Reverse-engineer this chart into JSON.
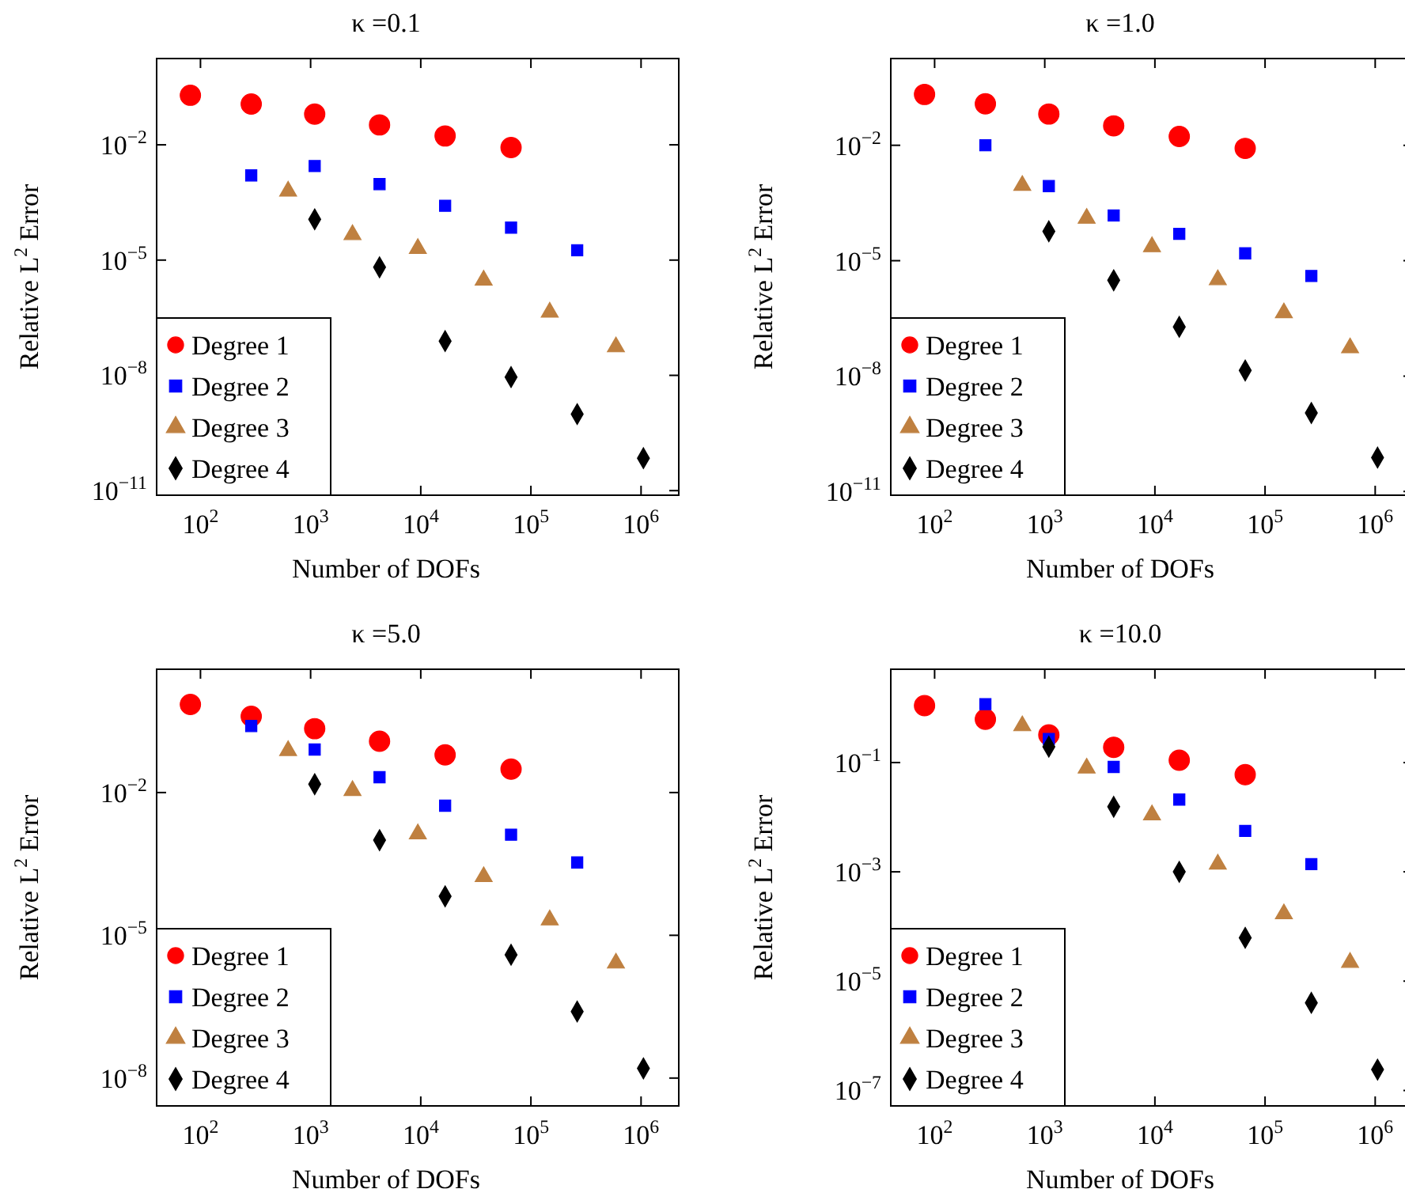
{
  "chart_data": [
    {
      "type": "scatter",
      "title": "κ =0.1",
      "xlabel": "Number of DOFs",
      "ylabel": "Relative L$^{2}$ Error",
      "log": "xy",
      "legend": "bottom left",
      "grid": false,
      "xlim": [
        40,
        2200000
      ],
      "ylim": [
        7.6e-12,
        1.76
      ],
      "xticks": [
        {
          "value": 100,
          "label": "10$^{2}$"
        },
        {
          "value": 1000,
          "label": "10$^{3}$"
        },
        {
          "value": 10000,
          "label": "10$^{4}$"
        },
        {
          "value": 100000,
          "label": "10$^{5}$"
        },
        {
          "value": 1000000,
          "label": "10$^{6}$"
        }
      ],
      "yticks": [
        {
          "value": 1e-11,
          "label": "10$^{−11}$"
        },
        {
          "value": 1e-08,
          "label": "10$^{−8}$"
        },
        {
          "value": 1e-05,
          "label": "10$^{−5}$"
        },
        {
          "value": 0.01,
          "label": "10$^{−2}$"
        }
      ],
      "series": [
        {
          "name": "Degree 1",
          "color": "#ff0000",
          "marker": "circle",
          "x": [
            81,
            289,
            1089,
            4225,
            16641,
            66049
          ],
          "values": [
            0.195,
            0.115,
            0.063,
            0.033,
            0.017,
            0.0085
          ]
        },
        {
          "name": "Degree 2",
          "color": "#0000ff",
          "marker": "square",
          "x": [
            289,
            1089,
            4225,
            16641,
            66049,
            263169
          ],
          "values": [
            0.0016,
            0.0028,
            0.00095,
            0.00026,
            7e-05,
            1.8e-05
          ]
        },
        {
          "name": "Degree 3",
          "color": "#bf8040",
          "marker": "triangle",
          "x": [
            625,
            2401,
            9409,
            37249,
            148225,
            591361
          ],
          "values": [
            0.00062,
            4.6e-05,
            2e-05,
            3e-06,
            4.4e-07,
            5.5e-08
          ]
        },
        {
          "name": "Degree 4",
          "color": "#000000",
          "marker": "diamond",
          "x": [
            1089,
            4225,
            16641,
            66049,
            263169,
            1050625
          ],
          "values": [
            0.000115,
            6.5e-06,
            7.8e-08,
            9e-09,
            9.8e-10,
            7e-11
          ]
        }
      ]
    },
    {
      "type": "scatter",
      "title": "κ =1.0",
      "xlabel": "Number of DOFs",
      "ylabel": "Relative L$^{2}$ Error",
      "log": "xy",
      "legend": "bottom left",
      "grid": false,
      "xlim": [
        40,
        2200000
      ],
      "ylim": [
        8e-12,
        1.8
      ],
      "xticks": [
        {
          "value": 100,
          "label": "10$^{2}$"
        },
        {
          "value": 1000,
          "label": "10$^{3}$"
        },
        {
          "value": 10000,
          "label": "10$^{4}$"
        },
        {
          "value": 100000,
          "label": "10$^{5}$"
        },
        {
          "value": 1000000,
          "label": "10$^{6}$"
        }
      ],
      "yticks": [
        {
          "value": 1e-11,
          "label": "10$^{−11}$"
        },
        {
          "value": 1e-08,
          "label": "10$^{−8}$"
        },
        {
          "value": 1e-05,
          "label": "10$^{−5}$"
        },
        {
          "value": 0.01,
          "label": "10$^{−2}$"
        }
      ],
      "series": [
        {
          "name": "Degree 1",
          "color": "#ff0000",
          "marker": "circle",
          "x": [
            81,
            289,
            1089,
            4225,
            16641,
            66049
          ],
          "values": [
            0.21,
            0.12,
            0.065,
            0.032,
            0.017,
            0.0083
          ]
        },
        {
          "name": "Degree 2",
          "color": "#0000ff",
          "marker": "square",
          "x": [
            289,
            1089,
            4225,
            16641,
            66049,
            263169
          ],
          "values": [
            0.01,
            0.00087,
            0.00015,
            5e-05,
            1.55e-05,
            4e-06
          ]
        },
        {
          "name": "Degree 3",
          "color": "#bf8040",
          "marker": "triangle",
          "x": [
            625,
            2401,
            9409,
            37249,
            148225,
            591361
          ],
          "values": [
            0.0009,
            0.000126,
            2.3e-05,
            3.2e-06,
            4.4e-07,
            5.4e-08
          ]
        },
        {
          "name": "Degree 4",
          "color": "#000000",
          "marker": "diamond",
          "x": [
            1089,
            4225,
            16641,
            66049,
            263169,
            1050625
          ],
          "values": [
            5.8e-05,
            3.1e-06,
            1.9e-07,
            1.4e-08,
            1.1e-09,
            7.6e-11
          ]
        }
      ]
    },
    {
      "type": "scatter",
      "title": "κ =5.0",
      "xlabel": "Number of DOFs",
      "ylabel": "Relative L$^{2}$ Error",
      "log": "xy",
      "legend": "bottom left",
      "grid": false,
      "xlim": [
        40,
        2200000
      ],
      "ylim": [
        2.6e-09,
        3.9
      ],
      "xticks": [
        {
          "value": 100,
          "label": "10$^{2}$"
        },
        {
          "value": 1000,
          "label": "10$^{3}$"
        },
        {
          "value": 10000,
          "label": "10$^{4}$"
        },
        {
          "value": 100000,
          "label": "10$^{5}$"
        },
        {
          "value": 1000000,
          "label": "10$^{6}$"
        }
      ],
      "yticks": [
        {
          "value": 1e-08,
          "label": "10$^{−8}$"
        },
        {
          "value": 1e-05,
          "label": "10$^{−5}$"
        },
        {
          "value": 0.01,
          "label": "10$^{−2}$"
        }
      ],
      "series": [
        {
          "name": "Degree 1",
          "color": "#ff0000",
          "marker": "circle",
          "x": [
            81,
            289,
            1089,
            4225,
            16641,
            66049
          ],
          "values": [
            0.71,
            0.4,
            0.22,
            0.12,
            0.062,
            0.031
          ]
        },
        {
          "name": "Degree 2",
          "color": "#0000ff",
          "marker": "square",
          "x": [
            289,
            1089,
            4225,
            16641,
            66049,
            263169
          ],
          "values": [
            0.25,
            0.08,
            0.021,
            0.0053,
            0.0013,
            0.00034
          ]
        },
        {
          "name": "Degree 3",
          "color": "#bf8040",
          "marker": "triangle",
          "x": [
            625,
            2401,
            9409,
            37249,
            148225,
            591361
          ],
          "values": [
            0.076,
            0.011,
            0.00135,
            0.00017,
            2.1e-05,
            2.6e-06
          ]
        },
        {
          "name": "Degree 4",
          "color": "#000000",
          "marker": "diamond",
          "x": [
            1089,
            4225,
            16641,
            66049,
            263169,
            1050625
          ],
          "values": [
            0.015,
            0.001,
            6.6e-05,
            3.9e-06,
            2.5e-07,
            1.6e-08
          ]
        }
      ]
    },
    {
      "type": "scatter",
      "title": "κ =10.0",
      "xlabel": "Number of DOFs",
      "ylabel": "Relative L$^{2}$ Error",
      "log": "xy",
      "legend": "bottom left",
      "grid": false,
      "xlim": [
        40,
        2200000
      ],
      "ylim": [
        5.2e-08,
        5.1
      ],
      "xticks": [
        {
          "value": 100,
          "label": "10$^{2}$"
        },
        {
          "value": 1000,
          "label": "10$^{3}$"
        },
        {
          "value": 10000,
          "label": "10$^{4}$"
        },
        {
          "value": 100000,
          "label": "10$^{5}$"
        },
        {
          "value": 1000000,
          "label": "10$^{6}$"
        }
      ],
      "yticks": [
        {
          "value": 1e-07,
          "label": "10$^{−7}$"
        },
        {
          "value": 1e-05,
          "label": "10$^{−5}$"
        },
        {
          "value": 0.001,
          "label": "10$^{−3}$"
        },
        {
          "value": 0.1,
          "label": "10$^{−1}$"
        }
      ],
      "series": [
        {
          "name": "Degree 1",
          "color": "#ff0000",
          "marker": "circle",
          "x": [
            81,
            289,
            1089,
            4225,
            16641,
            66049
          ],
          "values": [
            1.1,
            0.62,
            0.32,
            0.19,
            0.11,
            0.06
          ]
        },
        {
          "name": "Degree 2",
          "color": "#0000ff",
          "marker": "square",
          "x": [
            289,
            1089,
            4225,
            16641,
            66049,
            263169
          ],
          "values": [
            1.17,
            0.27,
            0.083,
            0.021,
            0.0056,
            0.00138
          ]
        },
        {
          "name": "Degree 3",
          "color": "#bf8040",
          "marker": "triangle",
          "x": [
            625,
            2401,
            9409,
            37249,
            148225,
            591361
          ],
          "values": [
            0.47,
            0.079,
            0.011,
            0.00138,
            0.00017,
            2.2e-05
          ]
        },
        {
          "name": "Degree 4",
          "color": "#000000",
          "marker": "diamond",
          "x": [
            1089,
            4225,
            16641,
            66049,
            263169,
            1050625
          ],
          "values": [
            0.195,
            0.0155,
            0.001,
            6.2e-05,
            4e-06,
            2.4e-07
          ]
        }
      ]
    }
  ]
}
